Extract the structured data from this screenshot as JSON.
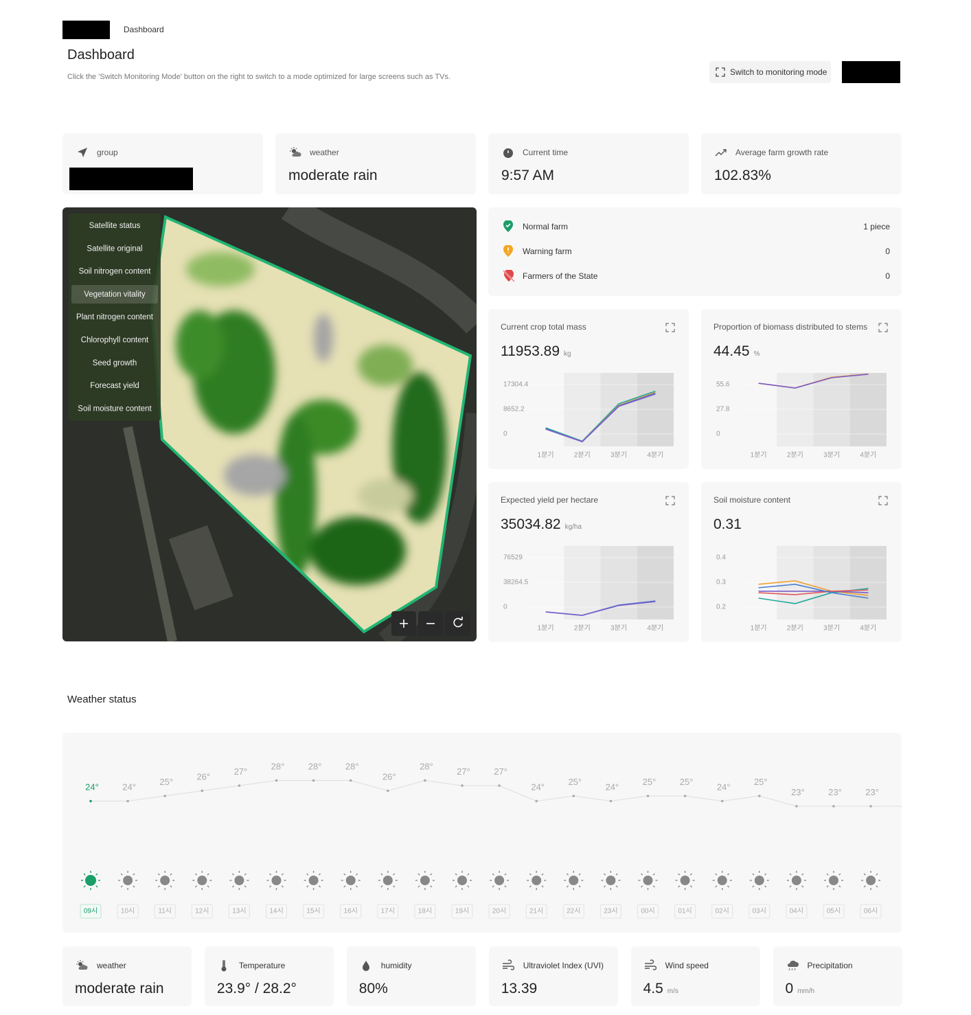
{
  "breadcrumb": "Dashboard",
  "header": {
    "title": "Dashboard",
    "description": "Click the 'Switch Monitoring Mode' button on the right to switch to a mode optimized for large screens such as TVs.",
    "monitor_button": "Switch to monitoring mode"
  },
  "stats": [
    {
      "label": "group"
    },
    {
      "label": "weather",
      "value": "moderate rain"
    },
    {
      "label": "Current time",
      "value": "9:57 AM"
    },
    {
      "label": "Average farm growth rate",
      "value": "102.83%"
    }
  ],
  "map_layers": [
    "Satellite status",
    "Satellite original",
    "Soil nitrogen content",
    "Vegetation vitality",
    "Plant nitrogen content",
    "Chlorophyll content",
    "Seed growth",
    "Forecast yield",
    "Soil moisture content"
  ],
  "farm_status": [
    {
      "label": "Normal farm",
      "value": "1 piece"
    },
    {
      "label": "Warning farm",
      "value": 0
    },
    {
      "label": "Farmers of the State",
      "value": 0
    }
  ],
  "chart_data": [
    {
      "type": "line",
      "title": "Current crop total mass",
      "value": 11953.89,
      "unit": "kg",
      "categories": [
        "1분기",
        "2분기",
        "3분기",
        "4분기"
      ],
      "ylim": [
        -4326,
        21390
      ],
      "yticks": [
        0,
        8652.2,
        17304.4
      ],
      "series": [
        {
          "color": "#1fa89a",
          "values": [
            2200,
            -2500,
            10600,
            15000
          ]
        },
        {
          "color": "#f0a030",
          "values": [
            1900,
            -2640,
            10100,
            14600
          ]
        },
        {
          "color": "#4a7fd0",
          "values": [
            1900,
            -2640,
            9900,
            14300
          ]
        },
        {
          "color": "#7a5cc8",
          "values": [
            1700,
            -2700,
            9700,
            14000
          ]
        }
      ]
    },
    {
      "type": "line",
      "title": "Proportion of biomass distributed to stems",
      "value": 44.45,
      "unit": "%",
      "categories": [
        "1분기",
        "2분기",
        "3분기",
        "4분기"
      ],
      "ylim": [
        -13.9,
        68.7
      ],
      "yticks": [
        0,
        27.8,
        55.6
      ],
      "series": [
        {
          "color": "#f0a030",
          "values": [
            57,
            51.8,
            63.8,
            67.5
          ]
        },
        {
          "color": "#7a5cc8",
          "values": [
            57.1,
            51.7,
            63.3,
            67.2
          ]
        }
      ]
    },
    {
      "type": "line",
      "title": "Expected yield per hectare",
      "value": 35034.82,
      "unit": "kg/ha",
      "categories": [
        "1분기",
        "2분기",
        "3분기",
        "4분기"
      ],
      "ylim": [
        -19130,
        94600
      ],
      "yticks": [
        0,
        38264.5,
        76529
      ],
      "series": [
        {
          "color": "#4a7fd0",
          "values": [
            -7440,
            -12760,
            3190,
            9570
          ]
        },
        {
          "color": "#7a5cc8",
          "values": [
            -7500,
            -12800,
            2500,
            8500
          ]
        }
      ]
    },
    {
      "type": "line",
      "title": "Soil moisture content",
      "value": 0.31,
      "categories": [
        "1분기",
        "2분기",
        "3분기",
        "4분기"
      ],
      "ylim": [
        0.15,
        0.447
      ],
      "yticks": [
        0.2,
        0.3,
        0.4
      ],
      "series": [
        {
          "color": "#f0a030",
          "values": [
            0.292,
            0.306,
            0.264,
            0.247
          ]
        },
        {
          "color": "#1fa89a",
          "values": [
            0.236,
            0.214,
            0.258,
            0.275
          ]
        },
        {
          "color": "#7a5cc8",
          "values": [
            0.264,
            0.264,
            0.264,
            0.258
          ]
        },
        {
          "color": "#e05a5a",
          "values": [
            0.258,
            0.25,
            0.264,
            0.269
          ]
        },
        {
          "color": "#4a7fd0",
          "values": [
            0.278,
            0.292,
            0.258,
            0.236
          ]
        }
      ]
    },
    {
      "type": "line",
      "title": "Weather status",
      "categories": [
        "09시",
        "10시",
        "11시",
        "12시",
        "13시",
        "14시",
        "15시",
        "16시",
        "17시",
        "18시",
        "19시",
        "20시",
        "21시",
        "22시",
        "23시",
        "00시",
        "01시",
        "02시",
        "03시",
        "04시",
        "05시",
        "06시"
      ],
      "values": [
        24,
        24,
        25,
        26,
        27,
        28,
        28,
        28,
        26,
        28,
        27,
        27,
        24,
        25,
        24,
        25,
        25,
        24,
        25,
        23,
        23,
        23
      ],
      "value_labels": [
        "24°",
        "24°",
        "25°",
        "26°",
        "27°",
        "28°",
        "28°",
        "28°",
        "26°",
        "28°",
        "27°",
        "27°",
        "24°",
        "25°",
        "24°",
        "25°",
        "25°",
        "24°",
        "25°",
        "23°",
        "23°",
        "23°"
      ]
    }
  ],
  "weather_summary": [
    {
      "label": "weather",
      "value": "moderate rain"
    },
    {
      "label": "Temperature",
      "value": "23.9° / 28.2°"
    },
    {
      "label": "humidity",
      "value": "80%"
    },
    {
      "label": "Ultraviolet Index (UVI)",
      "value": 13.39
    },
    {
      "label": "Wind speed",
      "value": 4.5,
      "unit": "m/s"
    },
    {
      "label": "Precipitation",
      "value": 0,
      "unit": "mm/h"
    }
  ]
}
